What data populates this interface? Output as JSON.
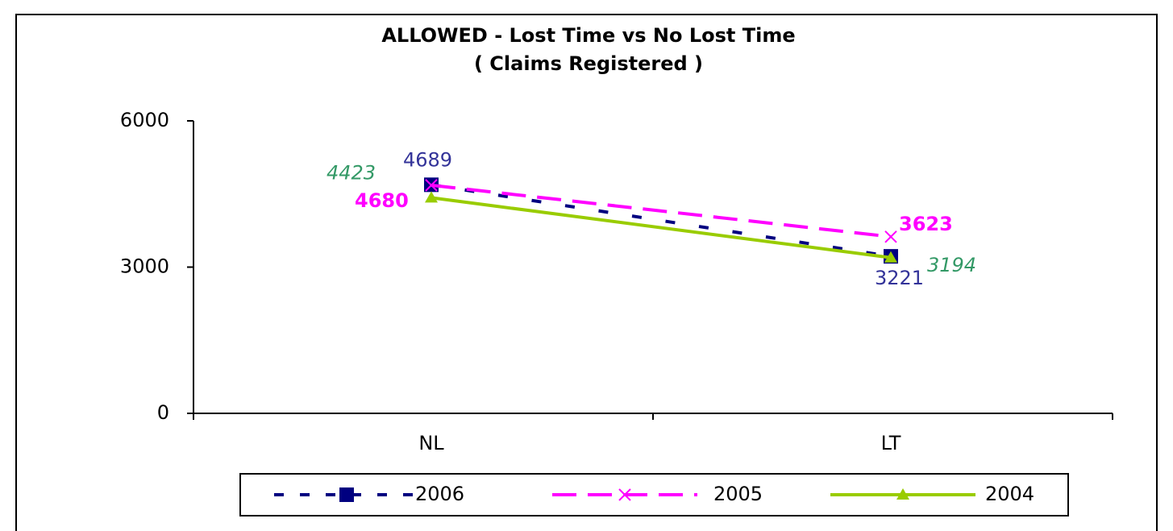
{
  "chart_data": {
    "type": "line",
    "title": "ALLOWED  - Lost Time vs No Lost Time",
    "subtitle": "( Claims Registered )",
    "categories": [
      "NL",
      "LT"
    ],
    "series": [
      {
        "name": "2006",
        "color": "#000080",
        "label_color": "#333399",
        "dash": "12 30",
        "marker": "square",
        "values": [
          4689,
          3221
        ]
      },
      {
        "name": "2005",
        "color": "#ff00ff",
        "label_color": "#ff00ff",
        "dash": "30 14",
        "marker": "x",
        "values": [
          4680,
          3623
        ]
      },
      {
        "name": "2004",
        "color": "#99cc00",
        "label_color": "#339966",
        "dash": "none",
        "marker": "triangle",
        "values": [
          4423,
          3194
        ]
      }
    ],
    "ylim": [
      0,
      6000
    ],
    "yticks": [
      0,
      3000,
      6000
    ],
    "grid": false,
    "legend": "bottom"
  }
}
